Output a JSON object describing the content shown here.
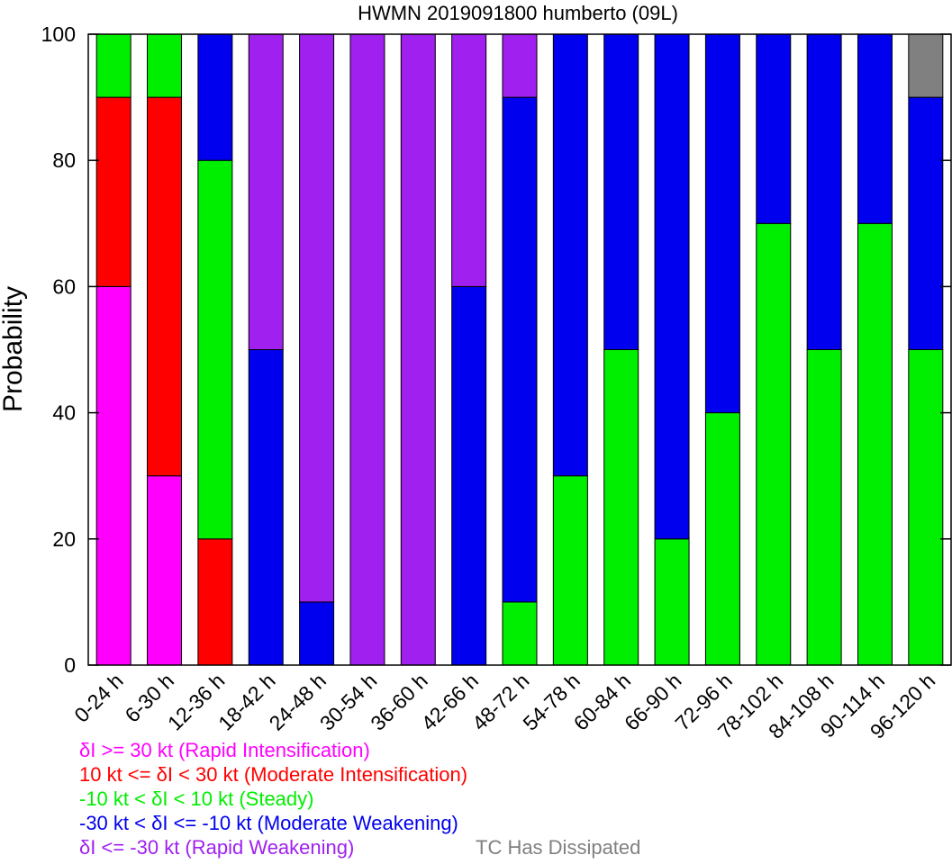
{
  "chart_data": {
    "type": "bar",
    "stacked": true,
    "title": "HWMN 2019091800 humberto (09L)",
    "xlabel": "",
    "ylabel": "Probability",
    "ylim": [
      0,
      100
    ],
    "yticks": [
      0,
      20,
      40,
      60,
      80,
      100
    ],
    "grid": false,
    "legend_position": "bottom-left",
    "categories": [
      "0-24 h",
      "6-30 h",
      "12-36 h",
      "18-42 h",
      "24-48 h",
      "30-54 h",
      "36-60 h",
      "42-66 h",
      "48-72 h",
      "54-78 h",
      "60-84 h",
      "66-90 h",
      "72-96 h",
      "78-102 h",
      "84-108 h",
      "90-114 h",
      "96-120 h"
    ],
    "series": [
      {
        "name": "δI >= 30 kt (Rapid Intensification)",
        "color": "#ff00ff",
        "values": [
          60,
          30,
          0,
          0,
          0,
          0,
          0,
          0,
          0,
          0,
          0,
          0,
          0,
          0,
          0,
          0,
          0
        ]
      },
      {
        "name": "10 kt <= δI < 30 kt (Moderate Intensification)",
        "color": "#ff0000",
        "values": [
          30,
          60,
          20,
          0,
          0,
          0,
          0,
          0,
          0,
          0,
          0,
          0,
          0,
          0,
          0,
          0,
          0
        ]
      },
      {
        "name": "-10 kt < δI < 10 kt (Steady)",
        "color": "#00ee00",
        "values": [
          10,
          10,
          60,
          0,
          0,
          0,
          0,
          0,
          10,
          30,
          50,
          20,
          40,
          70,
          50,
          70,
          50
        ]
      },
      {
        "name": "-30 kt < δI <= -10 kt (Moderate Weakening)",
        "color": "#0000ee",
        "values": [
          0,
          0,
          20,
          50,
          10,
          0,
          0,
          60,
          80,
          70,
          50,
          80,
          60,
          30,
          50,
          30,
          40
        ]
      },
      {
        "name": "δI <= -30 kt (Rapid Weakening)",
        "color": "#a020f0",
        "values": [
          0,
          0,
          0,
          50,
          90,
          100,
          100,
          40,
          10,
          0,
          0,
          0,
          0,
          0,
          0,
          0,
          0
        ]
      },
      {
        "name": "TC Has Dissipated",
        "color": "#808080",
        "values": [
          0,
          0,
          0,
          0,
          0,
          0,
          0,
          0,
          0,
          0,
          0,
          0,
          0,
          0,
          0,
          0,
          10
        ]
      }
    ]
  }
}
